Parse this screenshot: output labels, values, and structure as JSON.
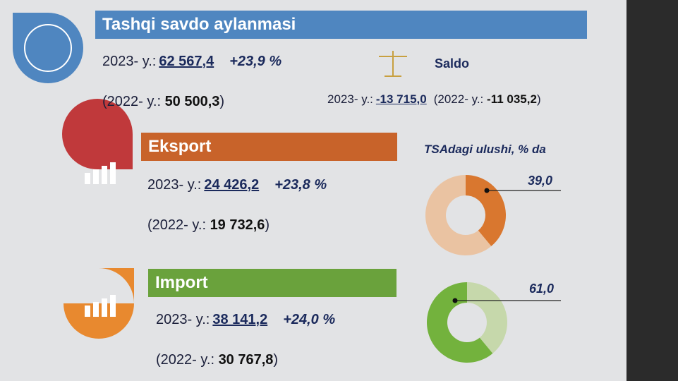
{
  "total": {
    "title": "Tashqi savdo aylanmasi",
    "year_label": "2023- y.:",
    "value": "62 567,4",
    "growth": "+23,9 %",
    "prev_open": "(2022- y.:",
    "prev_value": "50 500,3",
    "prev_close": ")"
  },
  "saldo": {
    "title": "Saldo",
    "year_label": "2023- y.:",
    "value": "-13 715,0",
    "prev_open": "(2022- y.:",
    "prev_value": "-11 035,2",
    "prev_close": ")"
  },
  "export": {
    "title": "Eksport",
    "year_label": "2023- y.:",
    "value": "24 426,2",
    "growth": "+23,8 %",
    "prev_open": "(2022- y.:",
    "prev_value": "19 732,6",
    "prev_close": ")"
  },
  "import": {
    "title": "Import",
    "year_label": "2023- y.:",
    "value": "38 141,2",
    "growth": "+24,0 %",
    "prev_open": "(2022- y.:",
    "prev_value": "30 767,8",
    "prev_close": ")"
  },
  "share_title": "TSAdagi ulushi, % da",
  "shares": [
    {
      "value": 39,
      "label": "39,0",
      "color": "#d9772f",
      "rest_color": "#eac3a2"
    },
    {
      "value": 61,
      "label": "61,0",
      "color": "#73b23d",
      "rest_color": "#c6d8ab"
    }
  ]
}
